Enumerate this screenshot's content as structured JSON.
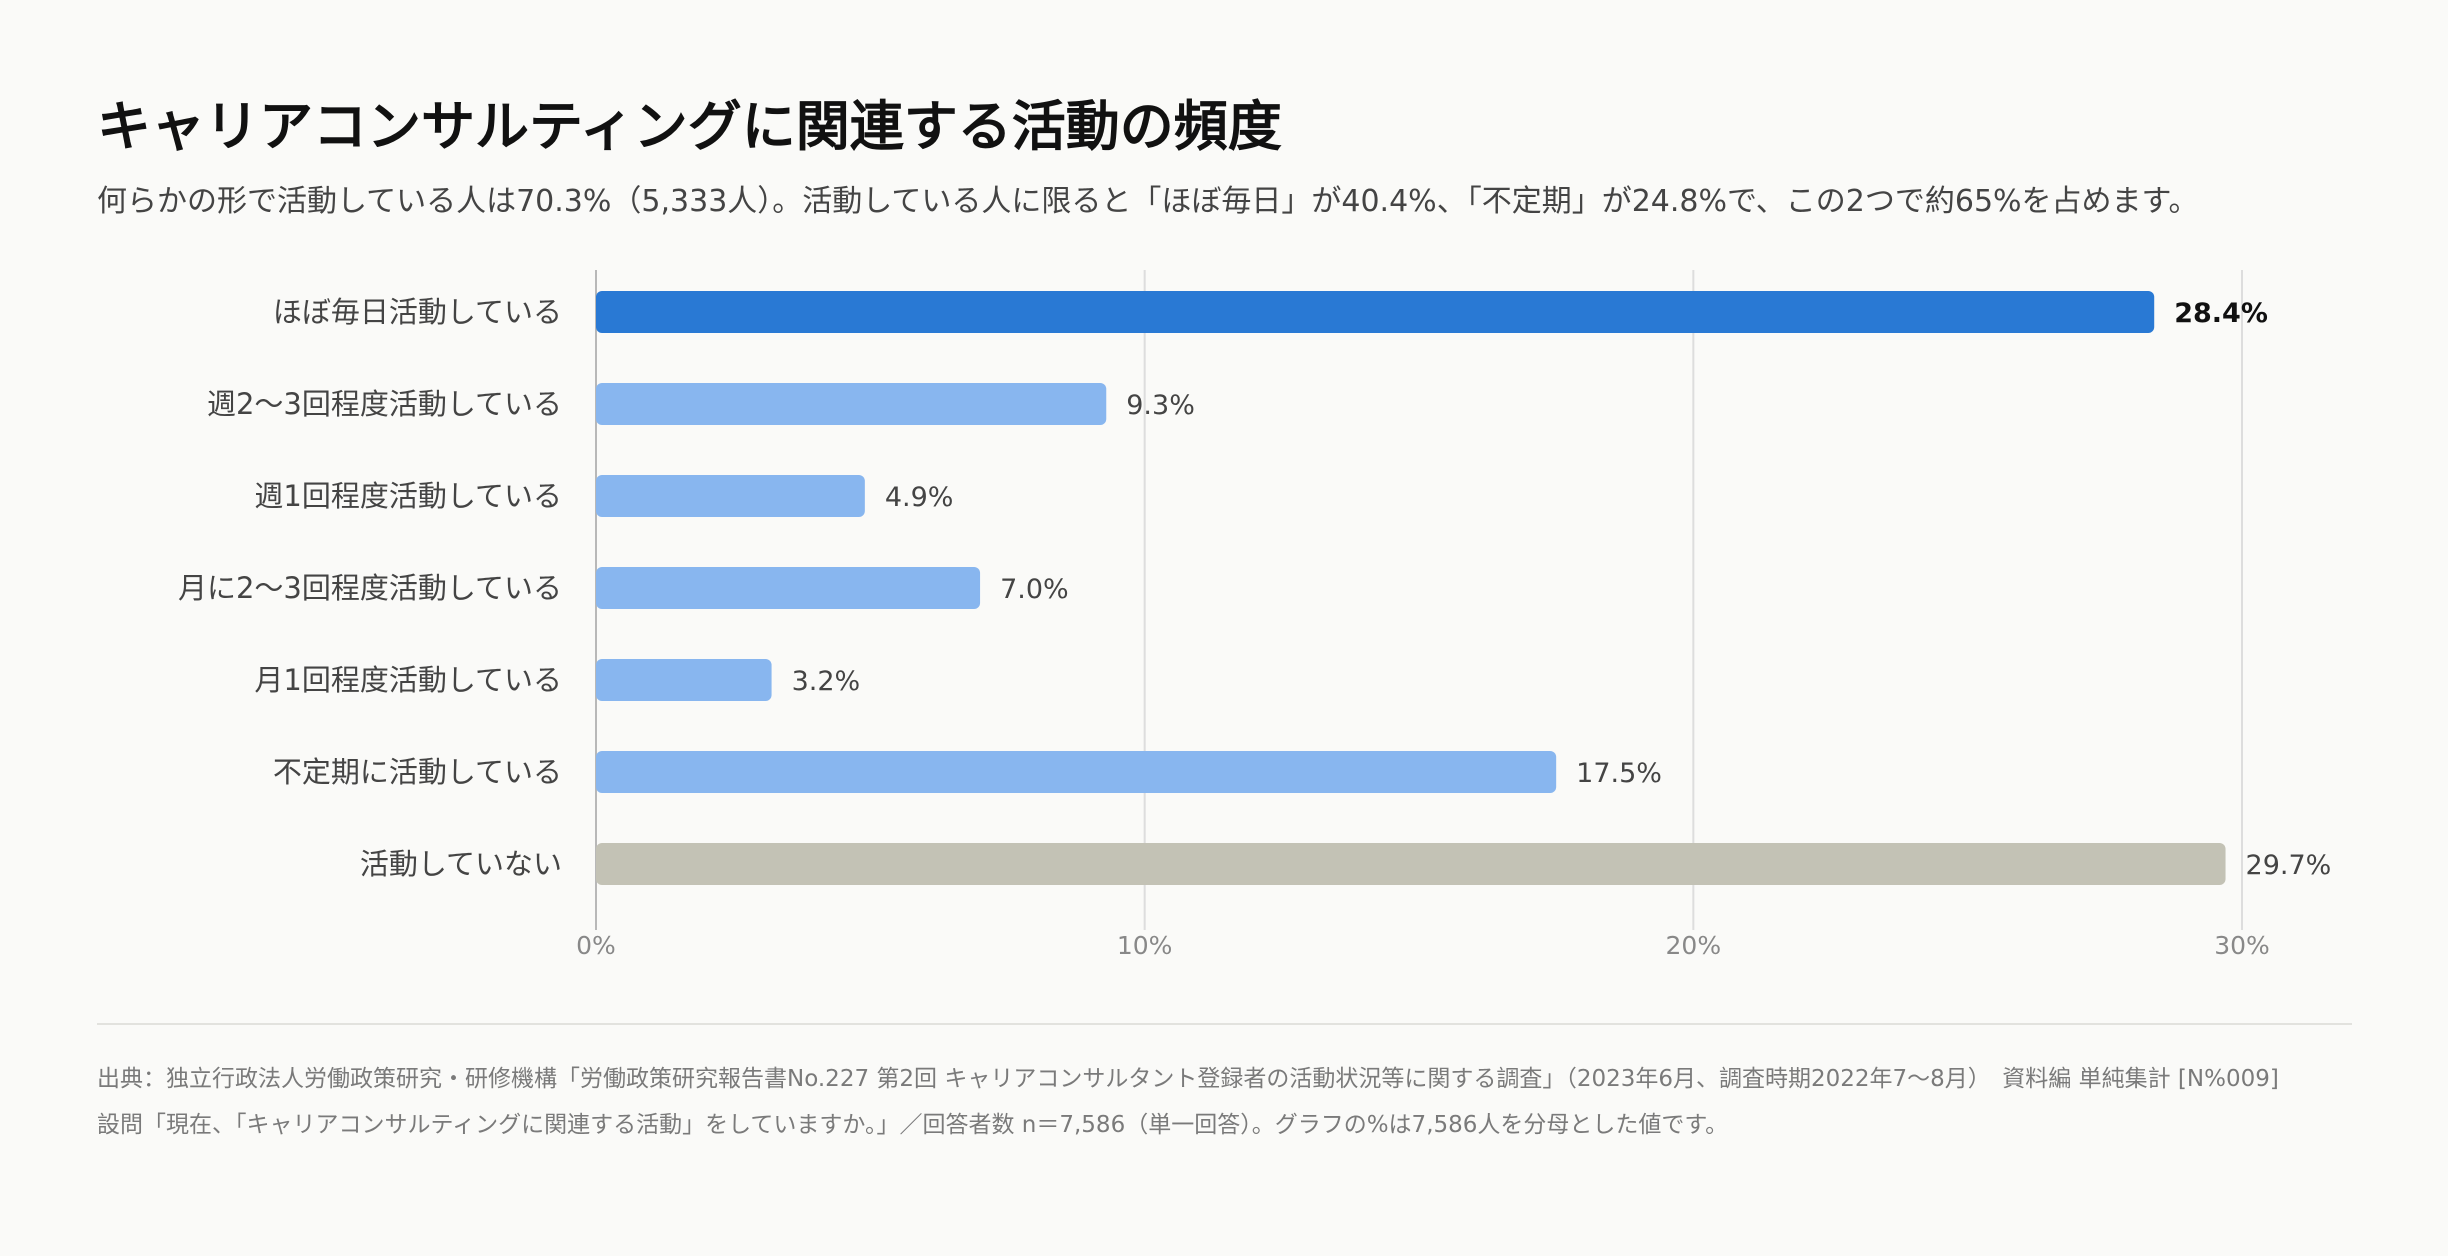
{
  "title": "キャリアコンサルティングに関連する活動の頻度",
  "subtitle": "何らかの形で活動している人は70.3%（5,333人）。活動している人に限ると「ほぼ毎日」が40.4%、「不定期」が24.8%で、この2つで約65%を占めます。",
  "chart_data": {
    "type": "bar",
    "orientation": "horizontal",
    "categories": [
      "ほぼ毎日活動している",
      "週2〜3回程度活動している",
      "週1回程度活動している",
      "月に2〜3回程度活動している",
      "月1回程度活動している",
      "不定期に活動している",
      "活動していない"
    ],
    "values": [
      28.4,
      9.3,
      4.9,
      7.0,
      3.2,
      17.5,
      29.7
    ],
    "value_labels": [
      "28.4%",
      "9.3%",
      "4.9%",
      "7.0%",
      "3.2%",
      "17.5%",
      "29.7%"
    ],
    "highlight_index": 0,
    "x_ticks": [
      0,
      10,
      20,
      30
    ],
    "x_tick_labels": [
      "0%",
      "10%",
      "20%",
      "30%"
    ],
    "xlim": [
      0,
      30
    ],
    "grid": true,
    "colors": {
      "highlight": "#2979d4",
      "normal": "#88b6ef",
      "inactive": "#c3c2b5",
      "grid": "#dddddd",
      "axis": "#b8b8b8",
      "tick_text": "#888888",
      "category_text": "#444444",
      "value_text": "#444444",
      "highlight_value_text": "#111111"
    }
  },
  "footer": {
    "source": "出典：独立行政法人労働政策研究・研修機構「労働政策研究報告書No.227 第2回 キャリアコンサルタント登録者の活動状況等に関する調査」（2023年6月、調査時期2022年7〜8月）　資料編 単純集計 [N%009]",
    "question": "設問「現在、「キャリアコンサルティングに関連する活動」をしていますか。」／回答者数 n＝7,586（単一回答）。グラフの%は7,586人を分母とした値です。"
  }
}
